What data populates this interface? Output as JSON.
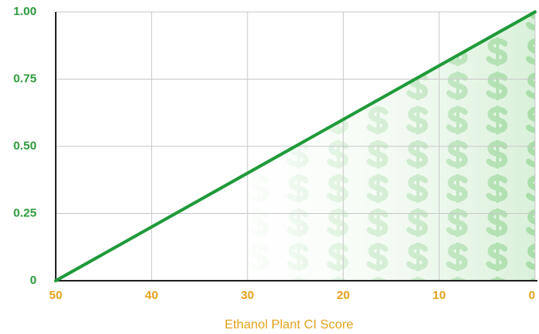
{
  "chart_data": {
    "type": "line",
    "x_label": "Ethanol Plant CI Score",
    "x": [
      50,
      0
    ],
    "values": [
      0,
      1
    ],
    "color": "#1f9a3a",
    "xlim": [
      50,
      0
    ],
    "xticks": [
      50,
      40,
      30,
      20,
      10,
      0
    ],
    "ylim": [
      0,
      1
    ],
    "yticks": [
      0,
      0.25,
      {
        "value": 0.5,
        "label": "0.50"
      },
      0.75,
      {
        "value": 1,
        "label": "1.00"
      }
    ],
    "grid": true
  }
}
